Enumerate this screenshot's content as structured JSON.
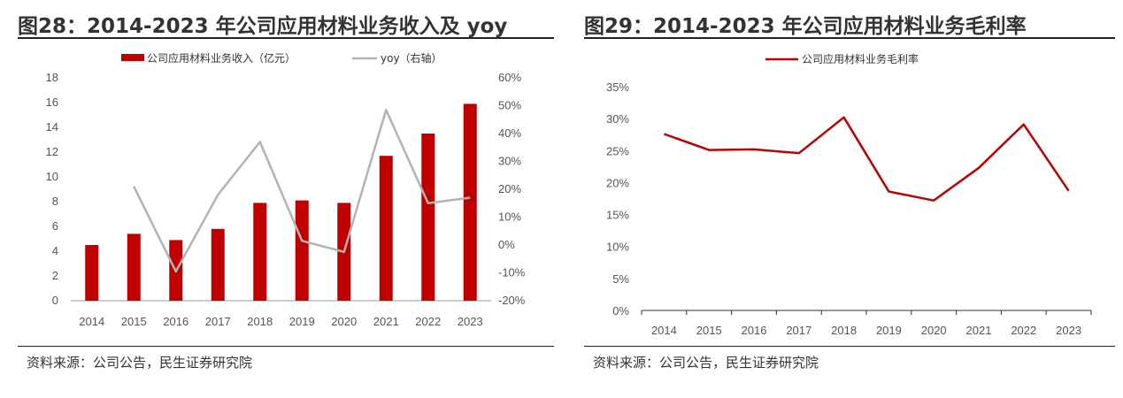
{
  "charts": [
    {
      "figure_title": "图28：2014-2023 年公司应用材料业务收入及 yoy",
      "source": "资料来源：公司公告，民生证券研究院"
    },
    {
      "figure_title": "图29：2014-2023 年公司应用材料业务毛利率",
      "source": "资料来源：公司公告，民生证券研究院"
    }
  ],
  "chart_data": [
    {
      "type": "bar",
      "categories": [
        "2014",
        "2015",
        "2016",
        "2017",
        "2018",
        "2019",
        "2020",
        "2021",
        "2022",
        "2023"
      ],
      "series": [
        {
          "name": "公司应用材料业务收入（亿元）",
          "type": "bar",
          "axis": "left",
          "color": "#c00000",
          "values": [
            4.5,
            5.4,
            4.9,
            5.8,
            7.9,
            8.1,
            7.9,
            11.7,
            13.5,
            15.9
          ]
        },
        {
          "name": "yoy（右轴）",
          "type": "line",
          "axis": "right",
          "color": "#b3b3b3",
          "values": [
            null,
            21,
            -9.5,
            18,
            37,
            1.5,
            -2.5,
            48.5,
            15,
            17
          ]
        }
      ],
      "y_left": {
        "min": 0,
        "max": 18,
        "step": 2,
        "tick_labels": [
          "0",
          "2",
          "4",
          "6",
          "8",
          "10",
          "12",
          "14",
          "16",
          "18"
        ]
      },
      "y_right": {
        "min": -20,
        "max": 60,
        "step": 10,
        "tick_labels": [
          "-20%",
          "-10%",
          "0%",
          "10%",
          "20%",
          "30%",
          "40%",
          "50%",
          "60%"
        ]
      },
      "legend_position": "top-center",
      "grid": false
    },
    {
      "type": "line",
      "categories": [
        "2014",
        "2015",
        "2016",
        "2017",
        "2018",
        "2019",
        "2020",
        "2021",
        "2022",
        "2023"
      ],
      "series": [
        {
          "name": "公司应用材料业务毛利率",
          "color": "#c00000",
          "values": [
            27.6,
            25.1,
            25.2,
            24.6,
            30.2,
            18.6,
            17.2,
            22.3,
            29.1,
            18.7
          ]
        }
      ],
      "y": {
        "min": 0,
        "max": 35,
        "step": 5,
        "tick_labels": [
          "0%",
          "5%",
          "10%",
          "15%",
          "20%",
          "25%",
          "30%",
          "35%"
        ]
      },
      "legend_position": "top-center",
      "grid": false
    }
  ]
}
